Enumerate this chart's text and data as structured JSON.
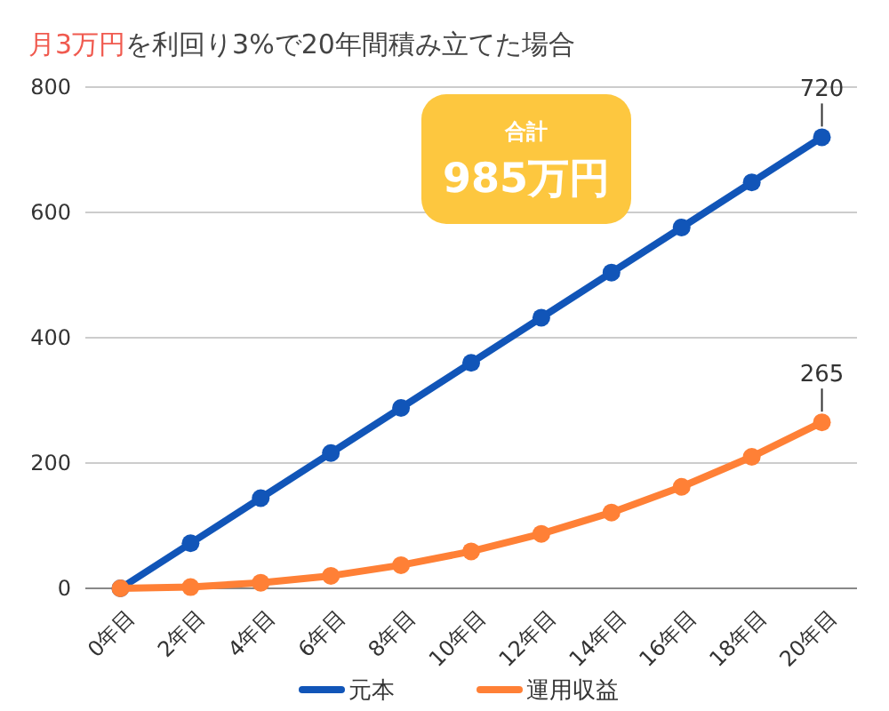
{
  "chart_data": {
    "type": "line",
    "title": "月3万円を利回り3%で20年間積み立てた場合",
    "categories": [
      "0年目",
      "2年目",
      "4年目",
      "6年目",
      "8年目",
      "10年目",
      "12年目",
      "14年目",
      "16年目",
      "18年目",
      "20年目"
    ],
    "series": [
      {
        "name": "元本",
        "color": "#1155b8",
        "values": [
          0,
          72,
          144,
          216,
          288,
          360,
          432,
          504,
          576,
          648,
          720
        ],
        "value_labels": [
          null,
          null,
          null,
          null,
          null,
          null,
          null,
          null,
          null,
          null,
          "720"
        ]
      },
      {
        "name": "運用収益",
        "color": "#ff8036",
        "values": [
          0,
          2,
          9,
          20,
          37,
          59,
          87,
          121,
          162,
          210,
          265
        ],
        "value_labels": [
          null,
          null,
          null,
          null,
          null,
          null,
          null,
          null,
          null,
          null,
          "265"
        ]
      }
    ],
    "ylim": [
      0,
      800
    ],
    "yticks": [
      0,
      200,
      400,
      600,
      800
    ],
    "grid": "y",
    "legend": "bottom",
    "marker": "circle",
    "line_style": "solid",
    "annotations": [
      "合計",
      "985万円"
    ]
  }
}
